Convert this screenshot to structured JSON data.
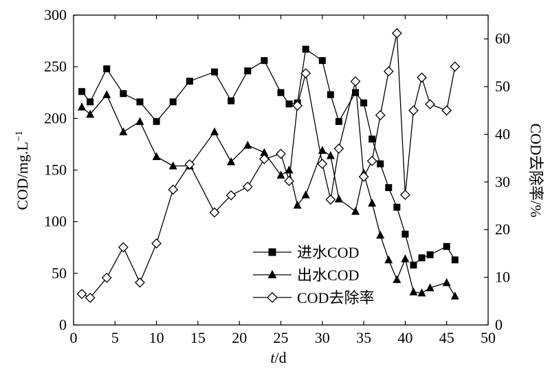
{
  "chart_data": {
    "type": "line",
    "xlabel_italic": "t",
    "xlabel_rest": "/d",
    "ylabel_left": "COD/mg.L",
    "ylabel_left_sup": "−1",
    "ylabel_right": "COD去除率/%",
    "xlim": [
      0,
      50
    ],
    "ylim_left": [
      0,
      300
    ],
    "ylim_right": [
      0,
      65
    ],
    "x_ticks": [
      0,
      5,
      10,
      15,
      20,
      25,
      30,
      35,
      40,
      45,
      50
    ],
    "y_left_ticks": [
      0,
      50,
      100,
      150,
      200,
      250,
      300
    ],
    "y_right_ticks": [
      0,
      10,
      20,
      30,
      40,
      50,
      60
    ],
    "grid": false,
    "legend_position": "bottom-center",
    "series": [
      {
        "name": "进水COD",
        "axis": "left",
        "marker": "square-filled",
        "x": [
          1,
          2,
          4,
          6,
          8,
          10,
          12,
          14,
          17,
          19,
          21,
          23,
          25,
          26,
          27,
          28,
          30,
          31,
          32,
          34,
          35,
          36,
          37,
          38,
          39,
          40,
          41,
          42,
          43,
          45,
          46
        ],
        "y": [
          226,
          216,
          248,
          224,
          216,
          197,
          216,
          236,
          245,
          217,
          246,
          256,
          225,
          214,
          215,
          267,
          256,
          223,
          197,
          225,
          215,
          180,
          156,
          133,
          114,
          88,
          58,
          65,
          68,
          76,
          63
        ]
      },
      {
        "name": "出水COD",
        "axis": "left",
        "marker": "triangle-filled",
        "x": [
          1,
          2,
          4,
          6,
          8,
          10,
          12,
          14,
          17,
          19,
          21,
          23,
          25,
          26,
          27,
          28,
          30,
          31,
          32,
          34,
          35,
          36,
          37,
          38,
          39,
          40,
          41,
          42,
          43,
          45,
          46
        ],
        "y": [
          211,
          204,
          223,
          187,
          197,
          163,
          154,
          154,
          187,
          158,
          174,
          167,
          145,
          150,
          116,
          126,
          169,
          164,
          122,
          110,
          147,
          118,
          87,
          63,
          44,
          64,
          32,
          31,
          36,
          41,
          28
        ]
      },
      {
        "name": "COD去除率",
        "axis": "right",
        "marker": "diamond-open",
        "x": [
          1,
          2,
          4,
          6,
          8,
          10,
          12,
          14,
          17,
          19,
          21,
          23,
          25,
          26,
          27,
          28,
          30,
          31,
          32,
          34,
          35,
          36,
          37,
          38,
          39,
          40,
          41,
          42,
          43,
          45,
          46
        ],
        "y": [
          6.5,
          5.7,
          9.9,
          16.3,
          8.9,
          17.1,
          28.4,
          33.7,
          23.6,
          27.2,
          29.0,
          34.8,
          35.9,
          30.2,
          46.0,
          52.8,
          33.8,
          26.3,
          37.0,
          51.1,
          31.1,
          34.4,
          44.0,
          53.2,
          61.2,
          27.3,
          45.0,
          51.9,
          46.3,
          45.0,
          54.2
        ]
      }
    ]
  }
}
